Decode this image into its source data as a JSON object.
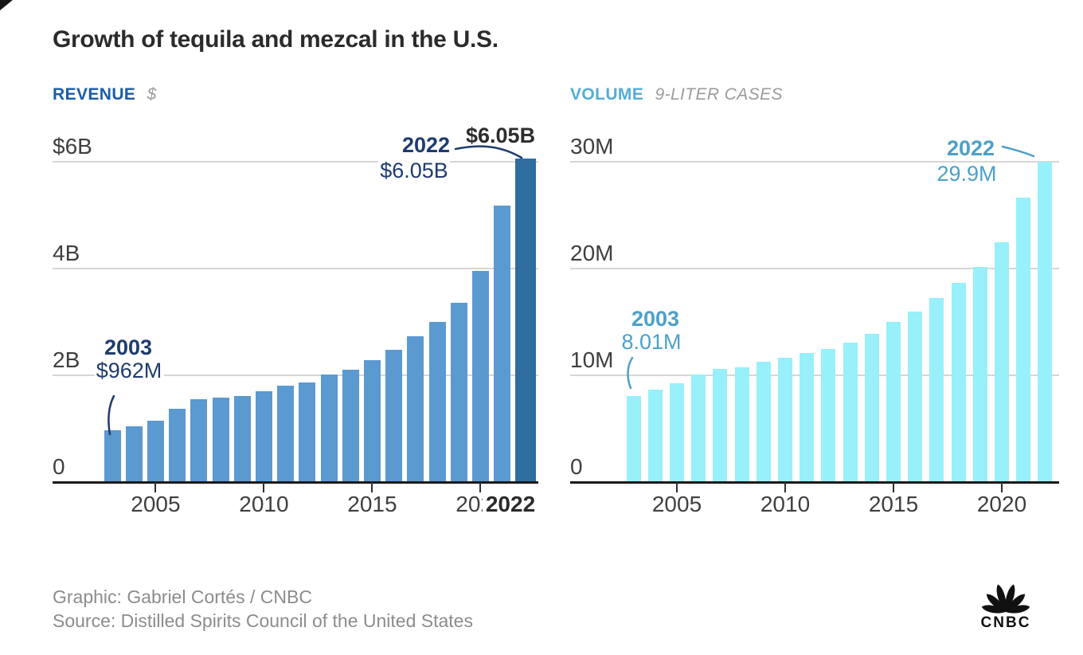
{
  "title": "Growth of tequila and mezcal in the U.S.",
  "chart_data": [
    {
      "type": "bar",
      "title_label": "REVENUE",
      "unit_label": "$",
      "header_color": "#1A5CA8",
      "bar_color": "#5B99D1",
      "highlight_bar_color": "#2F6CA0",
      "annotation_color": "#1E3C6E",
      "categories": [
        2003,
        2004,
        2005,
        2006,
        2007,
        2008,
        2009,
        2010,
        2011,
        2012,
        2013,
        2014,
        2015,
        2016,
        2017,
        2018,
        2019,
        2020,
        2021,
        2022
      ],
      "values": [
        0.962,
        1.03,
        1.14,
        1.36,
        1.53,
        1.57,
        1.6,
        1.68,
        1.79,
        1.85,
        2.0,
        2.09,
        2.27,
        2.47,
        2.72,
        2.98,
        3.34,
        3.94,
        5.16,
        6.05
      ],
      "unit": "billions of dollars",
      "ylim": [
        0,
        6.5
      ],
      "grid": true,
      "yticks": [
        {
          "label": "$6B",
          "value": 6
        },
        {
          "label": "4B",
          "value": 4
        },
        {
          "label": "2B",
          "value": 2
        },
        {
          "label": "0",
          "value": 0
        }
      ],
      "xticks": [
        {
          "label": "2005",
          "year": 2005
        },
        {
          "label": "2010",
          "year": 2010
        },
        {
          "label": "2015",
          "year": 2015
        },
        {
          "label": "2020",
          "year": 2020
        }
      ],
      "extra_xtick_label": "2022",
      "annotations": {
        "start": {
          "year": "2003",
          "value": "$962M"
        },
        "end": {
          "year": "2022",
          "value": "$6.05B"
        },
        "end_data_label": "$6.05B"
      }
    },
    {
      "type": "bar",
      "title_label": "VOLUME",
      "unit_label": "9-LITER CASES",
      "header_color": "#55ACD6",
      "bar_color": "#98F0FA",
      "highlight_bar_color": "#98F0FA",
      "annotation_color": "#4DA0C9",
      "categories": [
        2003,
        2004,
        2005,
        2006,
        2007,
        2008,
        2009,
        2010,
        2011,
        2012,
        2013,
        2014,
        2015,
        2016,
        2017,
        2018,
        2019,
        2020,
        2021,
        2022
      ],
      "values": [
        8.01,
        8.6,
        9.2,
        10.0,
        10.5,
        10.7,
        11.2,
        11.6,
        12.0,
        12.4,
        13.0,
        13.8,
        14.9,
        15.9,
        17.2,
        18.6,
        20.1,
        22.4,
        26.6,
        29.9
      ],
      "unit": "millions of 9-liter cases",
      "ylim": [
        0,
        32
      ],
      "grid": true,
      "yticks": [
        {
          "label": "30M",
          "value": 30
        },
        {
          "label": "20M",
          "value": 20
        },
        {
          "label": "10M",
          "value": 10
        },
        {
          "label": "0",
          "value": 0
        }
      ],
      "xticks": [
        {
          "label": "2005",
          "year": 2005
        },
        {
          "label": "2010",
          "year": 2010
        },
        {
          "label": "2015",
          "year": 2015
        },
        {
          "label": "2020",
          "year": 2020
        }
      ],
      "annotations": {
        "start": {
          "year": "2003",
          "value": "8.01M"
        },
        "end": {
          "year": "2022",
          "value": "29.9M"
        }
      }
    }
  ],
  "footer": {
    "credit": "Graphic: Gabriel Cortés / CNBC",
    "source": "Source: Distilled Spirits Council of the United States",
    "logo_text": "CNBC"
  }
}
